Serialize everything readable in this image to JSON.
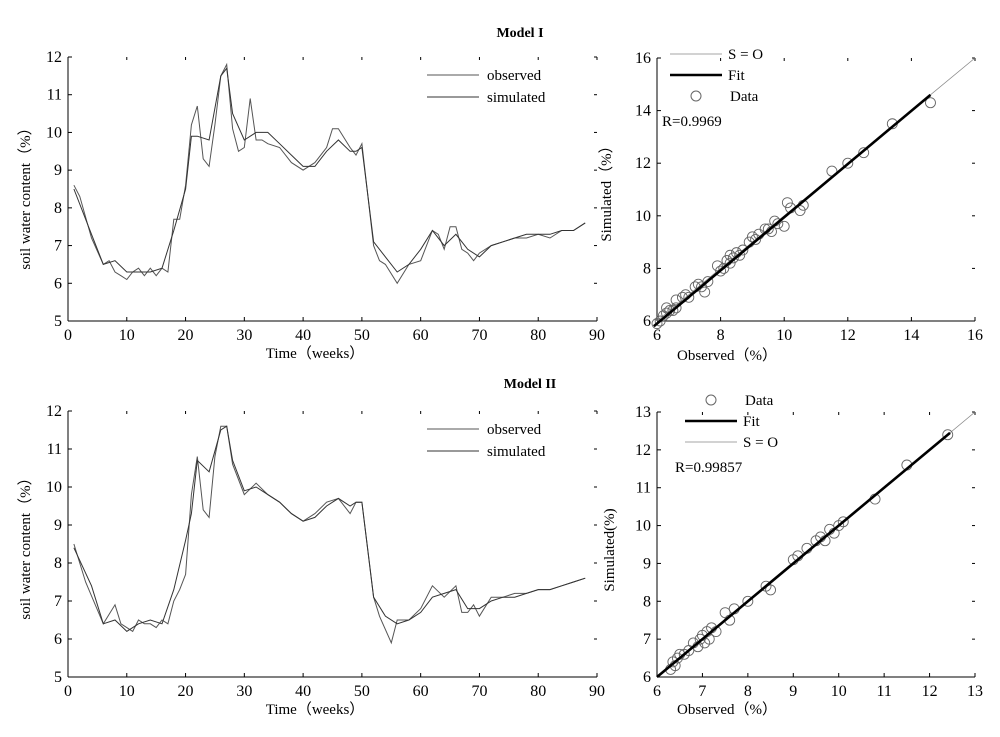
{
  "chart_data": [
    {
      "type": "line",
      "title": "Model I",
      "xlabel": "Time（weeks）",
      "ylabel": "soil water content（%）",
      "xlim": [
        0,
        90
      ],
      "ylim": [
        5,
        12
      ],
      "xticks": [
        0,
        10,
        20,
        30,
        40,
        50,
        60,
        70,
        80,
        90
      ],
      "yticks": [
        5,
        6,
        7,
        8,
        9,
        10,
        11,
        12
      ],
      "legend_position": "top-right",
      "series": [
        {
          "name": "observed",
          "x": [
            1,
            2,
            4,
            6,
            7,
            8,
            9,
            10,
            11,
            12,
            13,
            14,
            15,
            16,
            17,
            18,
            19,
            20,
            21,
            22,
            23,
            24,
            25,
            26,
            27,
            28,
            29,
            30,
            31,
            32,
            33,
            34,
            36,
            38,
            40,
            42,
            44,
            45,
            46,
            48,
            49,
            50,
            52,
            53,
            54,
            56,
            58,
            60,
            62,
            63,
            64,
            65,
            66,
            67,
            68,
            69,
            70,
            72,
            74,
            76,
            78,
            80,
            82,
            84,
            86,
            88
          ],
          "y": [
            8.6,
            8.3,
            7.2,
            6.5,
            6.6,
            6.3,
            6.2,
            6.1,
            6.3,
            6.4,
            6.2,
            6.4,
            6.2,
            6.4,
            6.3,
            7.7,
            7.7,
            8.6,
            10.2,
            10.7,
            9.3,
            9.1,
            10.2,
            11.5,
            11.8,
            10.1,
            9.5,
            9.6,
            10.9,
            9.8,
            9.8,
            9.7,
            9.6,
            9.2,
            9.0,
            9.2,
            9.6,
            10.1,
            10.1,
            9.6,
            9.4,
            9.7,
            7.0,
            6.6,
            6.5,
            6.0,
            6.5,
            6.6,
            7.4,
            7.3,
            6.9,
            7.5,
            7.5,
            6.9,
            6.8,
            6.6,
            6.8,
            7.0,
            7.1,
            7.2,
            7.2,
            7.3,
            7.2,
            7.4,
            7.4,
            7.6
          ]
        },
        {
          "name": "simulated",
          "x": [
            1,
            4,
            6,
            8,
            10,
            12,
            14,
            16,
            18,
            20,
            21,
            22,
            24,
            26,
            27,
            28,
            30,
            32,
            34,
            36,
            38,
            40,
            42,
            44,
            46,
            48,
            49,
            50,
            52,
            54,
            56,
            58,
            60,
            62,
            64,
            66,
            68,
            70,
            72,
            74,
            76,
            78,
            80,
            82,
            84,
            86,
            88
          ],
          "y": [
            8.5,
            7.3,
            6.5,
            6.6,
            6.3,
            6.3,
            6.3,
            6.4,
            7.4,
            8.5,
            9.9,
            9.9,
            9.8,
            11.5,
            11.7,
            10.5,
            9.8,
            10.0,
            10.0,
            9.7,
            9.4,
            9.1,
            9.1,
            9.5,
            9.8,
            9.5,
            9.5,
            9.6,
            7.1,
            6.7,
            6.3,
            6.5,
            6.9,
            7.4,
            7.0,
            7.3,
            6.9,
            6.7,
            7.0,
            7.1,
            7.2,
            7.3,
            7.3,
            7.3,
            7.4,
            7.4,
            7.6
          ]
        }
      ]
    },
    {
      "type": "scatter",
      "xlabel": "Observed（%）",
      "ylabel": "Simulated（%）",
      "xlim": [
        6,
        16
      ],
      "ylim": [
        6,
        16
      ],
      "xticks": [
        6,
        8,
        10,
        12,
        14,
        16
      ],
      "yticks": [
        6,
        8,
        10,
        12,
        14,
        16
      ],
      "annotation": "R=0.9969",
      "legend_position": "top-left",
      "legend": [
        "S = O",
        "Fit",
        "Data"
      ],
      "fit": {
        "x": [
          5.9,
          14.6
        ],
        "y": [
          5.8,
          14.6
        ]
      },
      "x": [
        6.0,
        6.1,
        6.2,
        6.3,
        6.3,
        6.4,
        6.5,
        6.6,
        6.6,
        6.8,
        6.9,
        7.0,
        7.2,
        7.3,
        7.4,
        7.5,
        7.6,
        7.9,
        8.0,
        8.1,
        8.2,
        8.3,
        8.3,
        8.4,
        8.5,
        8.6,
        8.7,
        8.9,
        9.0,
        9.1,
        9.2,
        9.4,
        9.5,
        9.6,
        9.7,
        9.8,
        10.0,
        10.1,
        10.2,
        10.5,
        10.6,
        11.5,
        12.0,
        12.5,
        13.4,
        14.6
      ],
      "y": [
        5.9,
        6.0,
        6.2,
        6.3,
        6.5,
        6.4,
        6.4,
        6.5,
        6.8,
        6.9,
        7.0,
        6.9,
        7.3,
        7.4,
        7.3,
        7.1,
        7.5,
        8.1,
        7.9,
        8.0,
        8.3,
        8.5,
        8.2,
        8.4,
        8.6,
        8.5,
        8.7,
        9.0,
        9.2,
        9.1,
        9.3,
        9.5,
        9.5,
        9.4,
        9.8,
        9.7,
        9.6,
        10.5,
        10.3,
        10.2,
        10.4,
        11.7,
        12.0,
        12.4,
        13.5,
        14.3
      ]
    },
    {
      "type": "line",
      "title": "Model II",
      "xlabel": "Time（weeks）",
      "ylabel": "soil water content（%）",
      "xlim": [
        0,
        90
      ],
      "ylim": [
        5,
        12
      ],
      "xticks": [
        0,
        10,
        20,
        30,
        40,
        50,
        60,
        70,
        80,
        90
      ],
      "yticks": [
        5,
        6,
        7,
        8,
        9,
        10,
        11,
        12
      ],
      "legend_position": "top-right",
      "series": [
        {
          "name": "observed",
          "x": [
            1,
            3,
            6,
            8,
            9,
            10,
            11,
            12,
            13,
            14,
            15,
            16,
            17,
            18,
            19,
            20,
            21,
            22,
            23,
            24,
            25,
            26,
            27,
            28,
            30,
            32,
            34,
            36,
            38,
            40,
            42,
            44,
            46,
            48,
            49,
            50,
            52,
            53,
            55,
            56,
            58,
            60,
            62,
            64,
            66,
            67,
            68,
            69,
            70,
            72,
            74,
            76,
            78,
            80,
            82,
            84,
            86,
            88
          ],
          "y": [
            8.5,
            7.5,
            6.4,
            6.9,
            6.4,
            6.3,
            6.2,
            6.5,
            6.4,
            6.4,
            6.3,
            6.5,
            6.4,
            7.0,
            7.3,
            7.7,
            9.8,
            10.8,
            9.4,
            9.2,
            10.8,
            11.6,
            11.6,
            10.6,
            9.8,
            10.1,
            9.8,
            9.6,
            9.3,
            9.1,
            9.3,
            9.6,
            9.7,
            9.3,
            9.6,
            9.6,
            7.1,
            6.6,
            5.9,
            6.5,
            6.5,
            6.8,
            7.4,
            7.1,
            7.4,
            6.7,
            6.7,
            6.9,
            6.6,
            7.1,
            7.1,
            7.2,
            7.2,
            7.3,
            7.3,
            7.4,
            7.5,
            7.6
          ]
        },
        {
          "name": "simulated",
          "x": [
            1,
            4,
            6,
            8,
            10,
            12,
            14,
            16,
            18,
            20,
            21,
            22,
            24,
            26,
            27,
            28,
            30,
            32,
            34,
            36,
            38,
            40,
            42,
            44,
            46,
            48,
            49,
            50,
            52,
            54,
            56,
            58,
            60,
            62,
            64,
            66,
            68,
            70,
            72,
            74,
            76,
            78,
            80,
            82,
            84,
            86,
            88
          ],
          "y": [
            8.4,
            7.4,
            6.4,
            6.5,
            6.2,
            6.4,
            6.5,
            6.4,
            7.3,
            8.6,
            9.3,
            10.7,
            10.4,
            11.5,
            11.6,
            10.7,
            9.9,
            10.0,
            9.8,
            9.6,
            9.3,
            9.1,
            9.2,
            9.5,
            9.7,
            9.5,
            9.6,
            9.6,
            7.1,
            6.6,
            6.4,
            6.5,
            6.7,
            7.1,
            7.2,
            7.3,
            6.8,
            6.8,
            7.0,
            7.1,
            7.1,
            7.2,
            7.3,
            7.3,
            7.4,
            7.5,
            7.6
          ]
        }
      ]
    },
    {
      "type": "scatter",
      "xlabel": "Observed（%）",
      "ylabel": "Simulated(%)",
      "xlim": [
        6,
        13
      ],
      "ylim": [
        6,
        13
      ],
      "xticks": [
        6,
        7,
        8,
        9,
        10,
        11,
        12,
        13
      ],
      "yticks": [
        6,
        7,
        8,
        9,
        10,
        11,
        12,
        13
      ],
      "annotation": "R=0.99857",
      "legend_position": "top-left",
      "legend": [
        "Data",
        "Fit",
        "S = O"
      ],
      "fit": {
        "x": [
          6.0,
          12.45
        ],
        "y": [
          6.0,
          12.45
        ]
      },
      "x": [
        6.3,
        6.35,
        6.4,
        6.45,
        6.5,
        6.6,
        6.7,
        6.8,
        6.9,
        6.95,
        7.0,
        7.05,
        7.1,
        7.15,
        7.2,
        7.3,
        7.5,
        7.6,
        7.7,
        8.0,
        8.4,
        8.5,
        9.0,
        9.1,
        9.3,
        9.5,
        9.6,
        9.7,
        9.8,
        9.9,
        10.0,
        10.1,
        10.8,
        11.5,
        12.4
      ],
      "y": [
        6.2,
        6.4,
        6.3,
        6.5,
        6.6,
        6.6,
        6.7,
        6.9,
        6.8,
        7.0,
        7.1,
        6.9,
        7.2,
        7.0,
        7.3,
        7.2,
        7.7,
        7.5,
        7.8,
        8.0,
        8.4,
        8.3,
        9.1,
        9.2,
        9.4,
        9.6,
        9.7,
        9.6,
        9.9,
        9.8,
        10.0,
        10.1,
        10.7,
        11.6,
        12.4
      ]
    }
  ]
}
